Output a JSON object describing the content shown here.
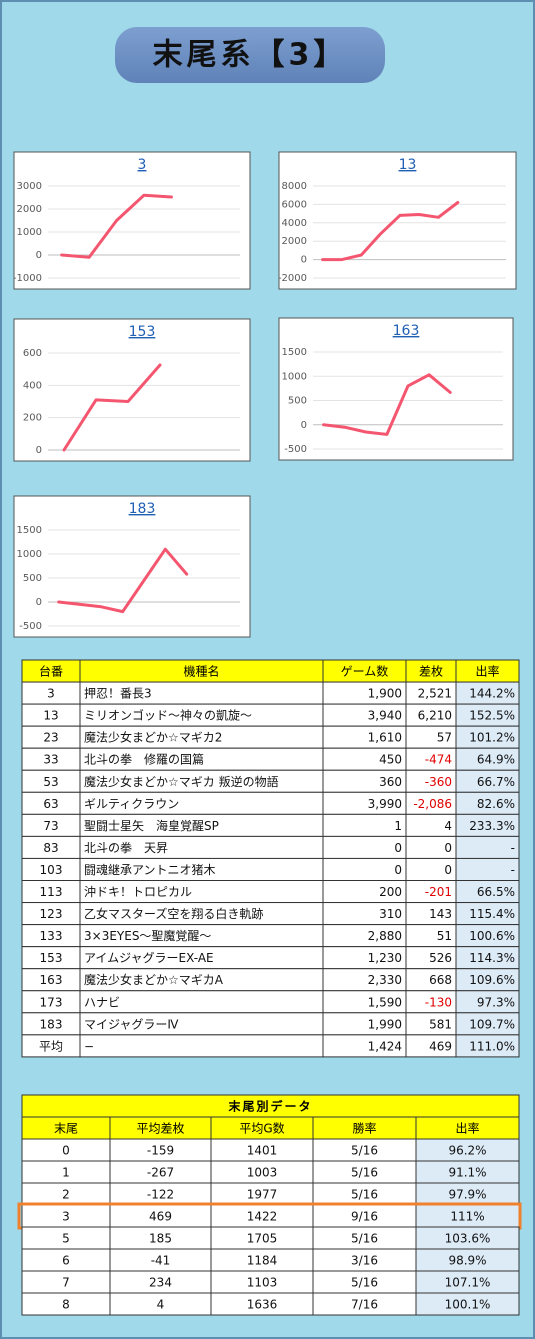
{
  "title": "末尾系【3】",
  "chart_data": [
    {
      "type": "line",
      "title": "3",
      "values": [
        0,
        -100,
        1500,
        2600,
        2521,
        null,
        null
      ],
      "ylim": [
        -1000,
        3000
      ],
      "yticks": [
        -1000,
        0,
        1000,
        2000,
        3000
      ],
      "color": "#f4566f",
      "grid": true
    },
    {
      "type": "line",
      "title": "13",
      "values": [
        0,
        0,
        500,
        2800,
        4800,
        4900,
        4600,
        6210,
        null,
        null
      ],
      "ylim": [
        -2000,
        8000
      ],
      "yticks": [
        -2000,
        0,
        2000,
        4000,
        6000,
        8000
      ],
      "color": "#f4566f",
      "grid": true
    },
    {
      "type": "line",
      "title": "153",
      "values": [
        0,
        310,
        300,
        526,
        null,
        null
      ],
      "ylim": [
        0,
        600
      ],
      "yticks": [
        0,
        200,
        400,
        600
      ],
      "color": "#f4566f",
      "grid": true
    },
    {
      "type": "line",
      "title": "163",
      "values": [
        0,
        -50,
        -150,
        -200,
        800,
        1030,
        668,
        null,
        null
      ],
      "ylim": [
        -500,
        1500
      ],
      "yticks": [
        -500,
        0,
        500,
        1000,
        1500
      ],
      "color": "#f4566f",
      "grid": true
    },
    {
      "type": "line",
      "title": "183",
      "values": [
        0,
        -50,
        -100,
        -200,
        450,
        1100,
        581,
        null,
        null
      ],
      "ylim": [
        -500,
        1500
      ],
      "yticks": [
        -500,
        0,
        500,
        1000,
        1500
      ],
      "color": "#f4566f",
      "grid": true
    }
  ],
  "machine_table": {
    "columns": [
      "台番",
      "機種名",
      "ゲーム数",
      "差枚",
      "出率"
    ],
    "rows": [
      [
        "3",
        "押忍！番長3",
        "1,900",
        "2,521",
        "144.2%"
      ],
      [
        "13",
        "ミリオンゴッド～神々の凱旋～",
        "3,940",
        "6,210",
        "152.5%"
      ],
      [
        "23",
        "魔法少女まどか☆マギカ2",
        "1,610",
        "57",
        "101.2%"
      ],
      [
        "33",
        "北斗の拳　修羅の国篇",
        "450",
        "-474",
        "64.9%"
      ],
      [
        "53",
        "魔法少女まどか☆マギカ 叛逆の物語",
        "360",
        "-360",
        "66.7%"
      ],
      [
        "63",
        "ギルティクラウン",
        "3,990",
        "-2,086",
        "82.6%"
      ],
      [
        "73",
        "聖闘士星矢　海皇覚醒SP",
        "1",
        "4",
        "233.3%"
      ],
      [
        "83",
        "北斗の拳　天昇",
        "0",
        "0",
        "-"
      ],
      [
        "103",
        "闘魂継承アントニオ猪木",
        "0",
        "0",
        "-"
      ],
      [
        "113",
        "沖ドキ！トロピカル",
        "200",
        "-201",
        "66.5%"
      ],
      [
        "123",
        "乙女マスターズ空を翔る白き軌跡",
        "310",
        "143",
        "115.4%"
      ],
      [
        "133",
        "3×3EYES～聖魔覚醒～",
        "2,880",
        "51",
        "100.6%"
      ],
      [
        "153",
        "アイムジャグラーEX-AE",
        "1,230",
        "526",
        "114.3%"
      ],
      [
        "163",
        "魔法少女まどか☆マギカA",
        "2,330",
        "668",
        "109.6%"
      ],
      [
        "173",
        "ハナビ",
        "1,590",
        "-130",
        "97.3%"
      ],
      [
        "183",
        "マイジャグラーⅣ",
        "1,990",
        "581",
        "109.7%"
      ],
      [
        "平均",
        "−",
        "1,424",
        "469",
        "111.0%"
      ]
    ]
  },
  "summary_table": {
    "title": "末尾別データ",
    "columns": [
      "末尾",
      "平均差枚",
      "平均G数",
      "勝率",
      "出率"
    ],
    "rows": [
      [
        "0",
        "-159",
        "1401",
        "5/16",
        "96.2%"
      ],
      [
        "1",
        "-267",
        "1003",
        "5/16",
        "91.1%"
      ],
      [
        "2",
        "-122",
        "1977",
        "5/16",
        "97.9%"
      ],
      [
        "3",
        "469",
        "1422",
        "9/16",
        "111%"
      ],
      [
        "5",
        "185",
        "1705",
        "5/16",
        "103.6%"
      ],
      [
        "6",
        "-41",
        "1184",
        "3/16",
        "98.9%"
      ],
      [
        "7",
        "234",
        "1103",
        "5/16",
        "107.1%"
      ],
      [
        "8",
        "4",
        "1636",
        "7/16",
        "100.1%"
      ]
    ]
  }
}
